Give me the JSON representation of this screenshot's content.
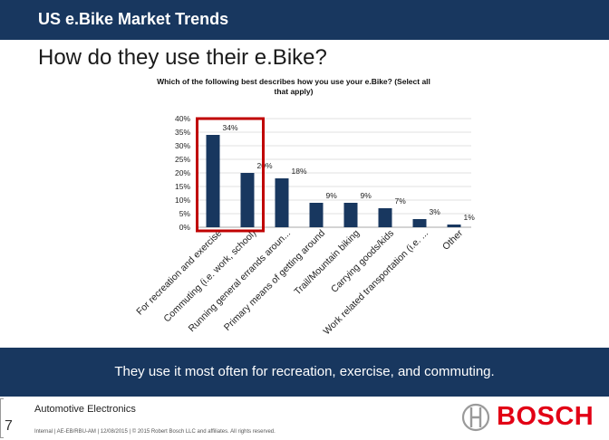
{
  "header": {
    "title": "US e.Bike Market Trends"
  },
  "slide": {
    "title": "How do they use their e.Bike?"
  },
  "chart_data": {
    "type": "bar",
    "title": "Which of the following best describes how you use your e.Bike? (Select all that apply)",
    "title_lines": [
      "Which of the following best describes how you use your e.Bike? (Select all",
      "that apply)"
    ],
    "categories": [
      "For recreation and exercise",
      "Commuting (i.e. work, school)",
      "Running general errands aroun...",
      "Primary means of getting around",
      "Trail/Mountain biking",
      "Carrying goods/kids",
      "Work related transportation (i.e. ...",
      "Other"
    ],
    "values": [
      34,
      20,
      18,
      9,
      9,
      7,
      3,
      1
    ],
    "data_labels": [
      "34%",
      "20%",
      "18%",
      "9%",
      "9%",
      "7%",
      "3%",
      "1%"
    ],
    "y_ticks": [
      "0%",
      "5%",
      "10%",
      "15%",
      "20%",
      "25%",
      "30%",
      "35%",
      "40%"
    ],
    "ylim": [
      0,
      40
    ],
    "xlabel": "",
    "ylabel": "",
    "bar_color": "#18375f",
    "highlight": {
      "categories": [
        "For recreation and exercise",
        "Commuting (i.e. work, school)"
      ],
      "color": "#c00000"
    }
  },
  "conclusion": {
    "text": "They use it most often for recreation, exercise, and commuting."
  },
  "footer": {
    "section": "Automotive Electronics",
    "legal": "Internal | AE-EB/RBU-AM | 12/08/2015 | © 2015 Robert Bosch LLC and affiliates. All rights reserved.",
    "page_number": "7"
  },
  "logo": {
    "wordmark": "BOSCH"
  },
  "colors": {
    "header_bg": "#18375f",
    "accent_red": "#e20015",
    "bar": "#18375f",
    "highlight": "#c00000"
  }
}
